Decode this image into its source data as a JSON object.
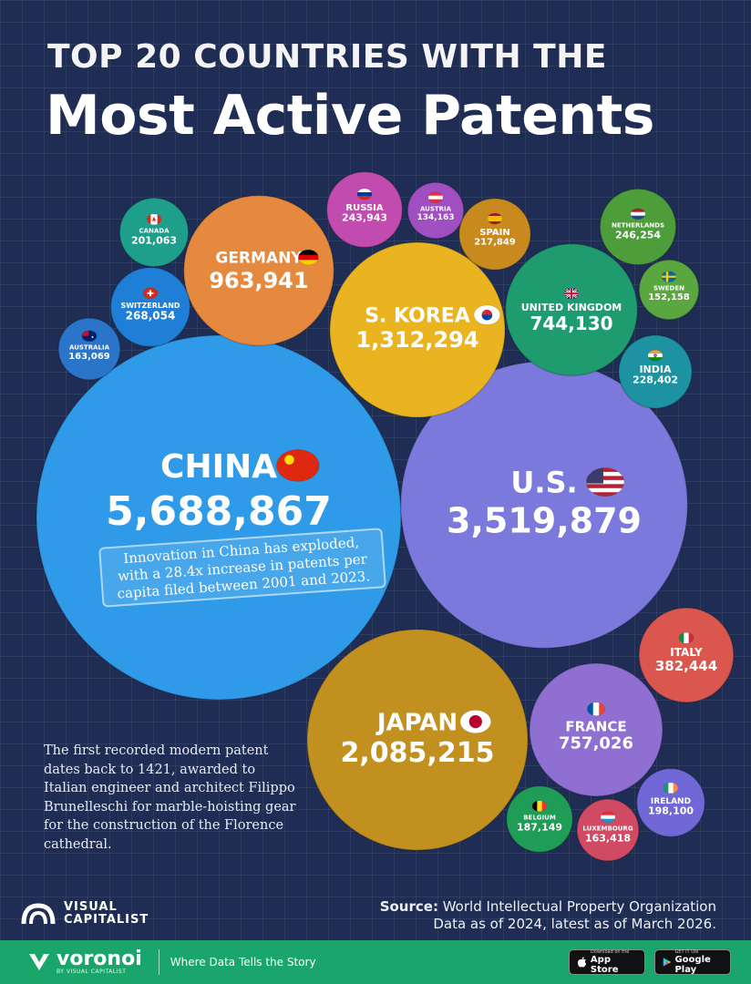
{
  "title": {
    "line1": "TOP 20 COUNTRIES WITH THE",
    "line2": "Most Active Patents"
  },
  "chart_data": {
    "type": "bubble",
    "title": "TOP 20 COUNTRIES WITH THE Most Active Patents",
    "series": [
      {
        "name": "China",
        "label": "CHINA",
        "value": 5688867,
        "display": "5,688,867",
        "color": "#2f9be8",
        "flag": "china-flag"
      },
      {
        "name": "U.S.",
        "label": "U.S.",
        "value": 3519879,
        "display": "3,519,879",
        "color": "#7b79dc",
        "flag": "us-flag"
      },
      {
        "name": "Japan",
        "label": "JAPAN",
        "value": 2085215,
        "display": "2,085,215",
        "color": "#c2901e",
        "flag": "japan-flag"
      },
      {
        "name": "S. Korea",
        "label": "S. KOREA",
        "value": 1312294,
        "display": "1,312,294",
        "color": "#e9b420",
        "flag": "south-korea-flag"
      },
      {
        "name": "Germany",
        "label": "GERMANY",
        "value": 963941,
        "display": "963,941",
        "color": "#e5893f",
        "flag": "germany-flag"
      },
      {
        "name": "France",
        "label": "FRANCE",
        "value": 757026,
        "display": "757,026",
        "color": "#8f6fd1",
        "flag": "france-flag"
      },
      {
        "name": "United Kingdom",
        "label": "UNITED KINGDOM",
        "value": 744130,
        "display": "744,130",
        "color": "#1f9c6f",
        "flag": "uk-flag"
      },
      {
        "name": "Italy",
        "label": "ITALY",
        "value": 382444,
        "display": "382,444",
        "color": "#d9574e",
        "flag": "italy-flag"
      },
      {
        "name": "Switzerland",
        "label": "SWITZERLAND",
        "value": 268054,
        "display": "268,054",
        "color": "#1f7fd6",
        "flag": "switzerland-flag"
      },
      {
        "name": "Netherlands",
        "label": "NETHERLANDS",
        "value": 246254,
        "display": "246,254",
        "color": "#4d9e3a",
        "flag": "netherlands-flag"
      },
      {
        "name": "Russia",
        "label": "RUSSIA",
        "value": 243943,
        "display": "243,943",
        "color": "#c24bb0",
        "flag": "russia-flag"
      },
      {
        "name": "India",
        "label": "INDIA",
        "value": 228402,
        "display": "228,402",
        "color": "#1c92a2",
        "flag": "india-flag"
      },
      {
        "name": "Spain",
        "label": "SPAIN",
        "value": 217849,
        "display": "217,849",
        "color": "#c88a1e",
        "flag": "spain-flag"
      },
      {
        "name": "Canada",
        "label": "CANADA",
        "value": 201063,
        "display": "201,063",
        "color": "#1e9f8c",
        "flag": "canada-flag"
      },
      {
        "name": "Ireland",
        "label": "IRELAND",
        "value": 198100,
        "display": "198,100",
        "color": "#6f68d6",
        "flag": "ireland-flag"
      },
      {
        "name": "Belgium",
        "label": "BELGIUM",
        "value": 187149,
        "display": "187,149",
        "color": "#1f9c55",
        "flag": "belgium-flag"
      },
      {
        "name": "Luxembourg",
        "label": "LUXEMBOURG",
        "value": 163418,
        "display": "163,418",
        "color": "#d04a63",
        "flag": "luxembourg-flag"
      },
      {
        "name": "Australia",
        "label": "AUSTRALIA",
        "value": 163069,
        "display": "163,069",
        "color": "#2a75c9",
        "flag": "australia-flag"
      },
      {
        "name": "Sweden",
        "label": "SWEDEN",
        "value": 152158,
        "display": "152,158",
        "color": "#5aa63f",
        "flag": "sweden-flag"
      },
      {
        "name": "Austria",
        "label": "AUSTRIA",
        "value": 134163,
        "display": "134,163",
        "color": "#a04fc0",
        "flag": "austria-flag"
      }
    ]
  },
  "china_callout": "Innovation in China has exploded, with a 28.4x increase in patents per capita filed between 2001 and 2023.",
  "side_note": "The first recorded modern patent dates back to 1421, awarded to Italian engineer and architect Filippo Brunelleschi for marble-hoisting gear for the construction of the Florence cathedral.",
  "source": {
    "label": "Source:",
    "text": "World Intellectual Property Organization",
    "note": "Data as of 2024, latest as of March 2026."
  },
  "brand": {
    "line1": "VISUAL",
    "line2": "CAPITALIST"
  },
  "footer": {
    "voronoi": "voronoi",
    "voronoi_sub": "BY VISUAL CAPITALIST",
    "tagline": "Where Data Tells the Story",
    "appstore_small": "Download on the",
    "appstore_big": "App Store",
    "googleplay_small": "GET IT ON",
    "googleplay_big": "Google Play",
    "accent": "#1aa66b"
  }
}
